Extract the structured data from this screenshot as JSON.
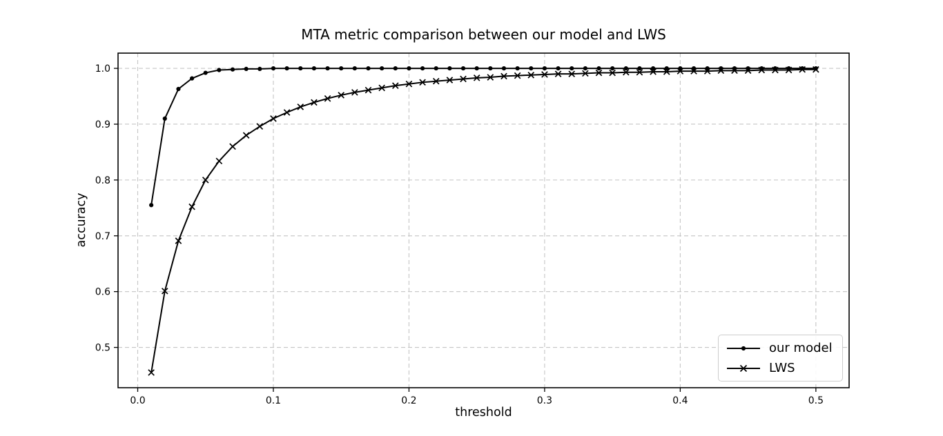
{
  "page": {
    "background_color": "#ffffff"
  },
  "chart_data": {
    "type": "line",
    "title": "MTA metric comparison between our model and LWS",
    "xlabel": "threshold",
    "ylabel": "accuracy",
    "xlim": [
      -0.0145,
      0.5245
    ],
    "ylim": [
      0.4278,
      1.0273
    ],
    "grid": "dashed-both-axes",
    "legend_position": "lower right",
    "colors": {
      "line": "#000000",
      "grid": "#c4c4c4",
      "spine": "#000000",
      "legend_border": "#cccccc",
      "background": "#ffffff"
    },
    "x_ticks": {
      "values": [
        0.0,
        0.1,
        0.2,
        0.3,
        0.4,
        0.5
      ],
      "labels": [
        "0.0",
        "0.1",
        "0.2",
        "0.3",
        "0.4",
        "0.5"
      ]
    },
    "y_ticks": {
      "values": [
        0.5,
        0.6,
        0.7,
        0.8,
        0.9,
        1.0
      ],
      "labels": [
        "0.5",
        "0.6",
        "0.7",
        "0.8",
        "0.9",
        "1.0"
      ]
    },
    "x": [
      0.01,
      0.02,
      0.03,
      0.04,
      0.05,
      0.06,
      0.07,
      0.08,
      0.09,
      0.1,
      0.11,
      0.12,
      0.13,
      0.14,
      0.15,
      0.16,
      0.17,
      0.18,
      0.19,
      0.2,
      0.21,
      0.22,
      0.23,
      0.24,
      0.25,
      0.26,
      0.27,
      0.28,
      0.29,
      0.3,
      0.31,
      0.32,
      0.33,
      0.34,
      0.35,
      0.36,
      0.37,
      0.38,
      0.39,
      0.4,
      0.41,
      0.42,
      0.43,
      0.44,
      0.45,
      0.46,
      0.47,
      0.48,
      0.49,
      0.5
    ],
    "series": [
      {
        "name": "our model",
        "marker": "dot",
        "values": [
          0.755,
          0.91,
          0.963,
          0.982,
          0.992,
          0.997,
          0.998,
          0.999,
          0.999,
          1.0,
          1.0,
          1.0,
          1.0,
          1.0,
          1.0,
          1.0,
          1.0,
          1.0,
          1.0,
          1.0,
          1.0,
          1.0,
          1.0,
          1.0,
          1.0,
          1.0,
          1.0,
          1.0,
          1.0,
          1.0,
          1.0,
          1.0,
          1.0,
          1.0,
          1.0,
          1.0,
          1.0,
          1.0,
          1.0,
          1.0,
          1.0,
          1.0,
          1.0,
          1.0,
          1.0,
          1.0,
          1.0,
          1.0,
          1.0,
          1.0
        ]
      },
      {
        "name": "LWS",
        "marker": "x",
        "values": [
          0.455,
          0.601,
          0.691,
          0.752,
          0.8,
          0.834,
          0.86,
          0.88,
          0.896,
          0.91,
          0.921,
          0.931,
          0.939,
          0.946,
          0.952,
          0.957,
          0.961,
          0.965,
          0.969,
          0.972,
          0.975,
          0.977,
          0.979,
          0.981,
          0.983,
          0.984,
          0.986,
          0.987,
          0.988,
          0.989,
          0.99,
          0.99,
          0.991,
          0.992,
          0.992,
          0.993,
          0.993,
          0.994,
          0.994,
          0.995,
          0.995,
          0.995,
          0.996,
          0.996,
          0.996,
          0.997,
          0.997,
          0.997,
          0.998,
          0.998
        ]
      }
    ]
  }
}
